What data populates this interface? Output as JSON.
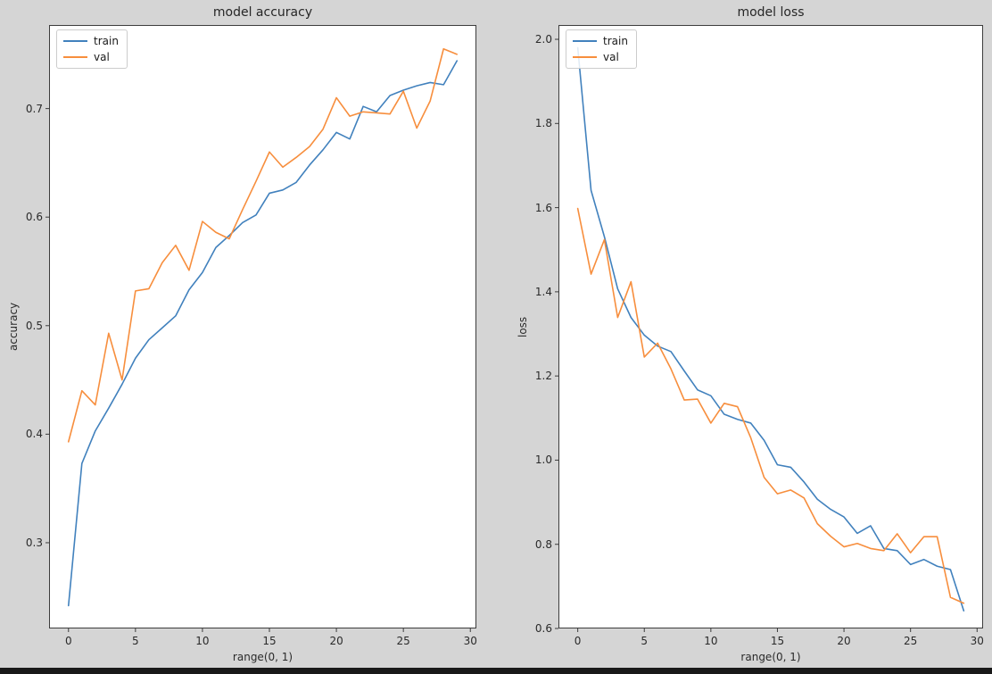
{
  "figure": {
    "background_color": "#d5d5d5",
    "axes_background_color": "#ffffff",
    "spine_color": "#3c3c3c",
    "text_color": "#262626",
    "bottom_bar_color": "#191919"
  },
  "chart_data": [
    {
      "type": "line",
      "title": "model accuracy",
      "xlabel": "range(0, 1)",
      "ylabel": "accuracy",
      "legend_position": "upper left",
      "grid": false,
      "xlim": [
        -1.45,
        30.45
      ],
      "ylim": [
        0.221,
        0.777
      ],
      "xticks": [
        0,
        5,
        10,
        15,
        20,
        25,
        30
      ],
      "yticks": [
        0.3,
        0.4,
        0.5,
        0.6,
        0.7
      ],
      "x": [
        0,
        1,
        2,
        3,
        4,
        5,
        6,
        7,
        8,
        9,
        10,
        11,
        12,
        13,
        14,
        15,
        16,
        17,
        18,
        19,
        20,
        21,
        22,
        23,
        24,
        25,
        26,
        27,
        28,
        29
      ],
      "series": [
        {
          "name": "train",
          "color": "#4181bd",
          "values": [
            0.242,
            0.373,
            0.403,
            0.424,
            0.446,
            0.47,
            0.487,
            0.498,
            0.509,
            0.533,
            0.549,
            0.572,
            0.583,
            0.595,
            0.602,
            0.622,
            0.625,
            0.632,
            0.648,
            0.662,
            0.678,
            0.672,
            0.702,
            0.697,
            0.712,
            0.717,
            0.721,
            0.724,
            0.722,
            0.744
          ]
        },
        {
          "name": "val",
          "color": "#f78e3d",
          "values": [
            0.393,
            0.44,
            0.427,
            0.493,
            0.45,
            0.532,
            0.534,
            0.558,
            0.574,
            0.551,
            0.596,
            0.586,
            0.58,
            0.607,
            0.633,
            0.66,
            0.646,
            0.655,
            0.665,
            0.681,
            0.71,
            0.693,
            0.697,
            0.696,
            0.695,
            0.716,
            0.682,
            0.707,
            0.755,
            0.75
          ]
        }
      ]
    },
    {
      "type": "line",
      "title": "model loss",
      "xlabel": "range(0, 1)",
      "ylabel": "loss",
      "legend_position": "upper left",
      "grid": false,
      "xlim": [
        -1.45,
        30.45
      ],
      "ylim": [
        0.6,
        2.034
      ],
      "xticks": [
        0,
        5,
        10,
        15,
        20,
        25,
        30
      ],
      "yticks": [
        0.6,
        0.8,
        1.0,
        1.2,
        1.4,
        1.6,
        1.8,
        2.0
      ],
      "x": [
        0,
        1,
        2,
        3,
        4,
        5,
        6,
        7,
        8,
        9,
        10,
        11,
        12,
        13,
        14,
        15,
        16,
        17,
        18,
        19,
        20,
        21,
        22,
        23,
        24,
        25,
        26,
        27,
        28,
        29
      ],
      "series": [
        {
          "name": "train",
          "color": "#4181bd",
          "values": [
            1.98,
            1.641,
            1.531,
            1.407,
            1.339,
            1.297,
            1.271,
            1.258,
            1.212,
            1.167,
            1.153,
            1.109,
            1.097,
            1.088,
            1.047,
            0.989,
            0.983,
            0.948,
            0.907,
            0.883,
            0.865,
            0.826,
            0.844,
            0.79,
            0.785,
            0.752,
            0.764,
            0.748,
            0.74,
            0.642
          ]
        },
        {
          "name": "val",
          "color": "#f78e3d",
          "values": [
            1.598,
            1.442,
            1.524,
            1.339,
            1.424,
            1.245,
            1.278,
            1.217,
            1.143,
            1.145,
            1.088,
            1.135,
            1.127,
            1.053,
            0.959,
            0.92,
            0.929,
            0.91,
            0.849,
            0.819,
            0.794,
            0.802,
            0.79,
            0.785,
            0.825,
            0.78,
            0.818,
            0.818,
            0.674,
            0.66
          ]
        }
      ]
    }
  ]
}
